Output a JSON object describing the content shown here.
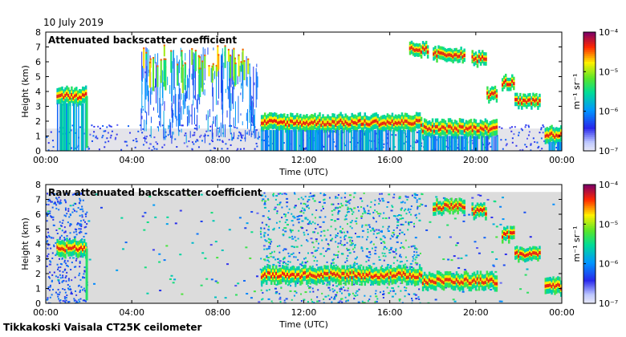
{
  "date": "10 July 2019",
  "footer": "Tikkakoski Vaisala CT25K ceilometer",
  "chart_data": [
    {
      "type": "heatmap",
      "title": "Attenuated backscatter coefficient",
      "xlabel": "Time (UTC)",
      "ylabel": "Height (km)",
      "x_ticks": [
        "00:00",
        "04:00",
        "08:00",
        "12:00",
        "16:00",
        "20:00",
        "00:00"
      ],
      "y_ticks": [
        0,
        1,
        2,
        3,
        4,
        5,
        6,
        7,
        8
      ],
      "xlim_hours": [
        0,
        24
      ],
      "ylim_km": [
        0,
        8
      ],
      "colorbar": {
        "scale": "log",
        "range": [
          1e-07,
          0.0001
        ],
        "unit": "m⁻¹ sr⁻¹",
        "tick_labels": [
          "10⁻⁷",
          "10⁻⁶",
          "10⁻⁵",
          "10⁻⁴"
        ]
      },
      "features": [
        {
          "kind": "cloud_layer",
          "start_h": 0.5,
          "end_h": 1.9,
          "height_km": 3.7
        },
        {
          "kind": "cloud_layer",
          "start_h": 10.0,
          "end_h": 17.5,
          "height_km": 1.9
        },
        {
          "kind": "cloud_layer",
          "start_h": 17.5,
          "end_h": 21.0,
          "height_km": 1.5
        },
        {
          "kind": "cloud_layer",
          "start_h": 23.2,
          "end_h": 24.0,
          "height_km": 1.1
        },
        {
          "kind": "high_cloud",
          "start_h": 16.9,
          "end_h": 17.8,
          "height_km": 6.8
        },
        {
          "kind": "high_cloud",
          "start_h": 18.0,
          "end_h": 19.5,
          "height_km": 6.5
        },
        {
          "kind": "high_cloud",
          "start_h": 19.8,
          "end_h": 20.5,
          "height_km": 6.2
        },
        {
          "kind": "mid_cloud",
          "start_h": 20.5,
          "end_h": 21.0,
          "height_km": 3.8
        },
        {
          "kind": "mid_cloud",
          "start_h": 21.2,
          "end_h": 21.8,
          "height_km": 4.6
        },
        {
          "kind": "mid_cloud",
          "start_h": 21.8,
          "end_h": 23.0,
          "height_km": 3.3
        },
        {
          "kind": "virga",
          "start_h": 4.5,
          "end_h": 9.5,
          "top_km": 7.2
        }
      ]
    },
    {
      "type": "heatmap",
      "title": "Raw attenuated backscatter coefficient",
      "xlabel": "Time (UTC)",
      "ylabel": "Height (km)",
      "x_ticks": [
        "00:00",
        "04:00",
        "08:00",
        "12:00",
        "16:00",
        "20:00",
        "00:00"
      ],
      "y_ticks": [
        0,
        1,
        2,
        3,
        4,
        5,
        6,
        7,
        8
      ],
      "xlim_hours": [
        0,
        24
      ],
      "ylim_km": [
        0,
        8
      ],
      "colorbar": {
        "scale": "log",
        "range": [
          1e-07,
          0.0001
        ],
        "unit": "m⁻¹ sr⁻¹",
        "tick_labels": [
          "10⁻⁷",
          "10⁻⁶",
          "10⁻⁵",
          "10⁻⁴"
        ]
      },
      "features": [
        {
          "kind": "cloud_layer",
          "start_h": 0.5,
          "end_h": 1.9,
          "height_km": 3.7
        },
        {
          "kind": "cloud_layer",
          "start_h": 10.0,
          "end_h": 17.5,
          "height_km": 1.9
        },
        {
          "kind": "cloud_layer",
          "start_h": 17.5,
          "end_h": 21.0,
          "height_km": 1.5
        },
        {
          "kind": "cloud_layer",
          "start_h": 23.2,
          "end_h": 24.0,
          "height_km": 1.1
        },
        {
          "kind": "high_cloud",
          "start_h": 18.0,
          "end_h": 19.5,
          "height_km": 6.5
        },
        {
          "kind": "high_cloud",
          "start_h": 19.8,
          "end_h": 20.5,
          "height_km": 6.2
        },
        {
          "kind": "mid_cloud",
          "start_h": 21.2,
          "end_h": 21.8,
          "height_km": 4.6
        },
        {
          "kind": "mid_cloud",
          "start_h": 21.8,
          "end_h": 23.0,
          "height_km": 3.3
        }
      ]
    }
  ]
}
